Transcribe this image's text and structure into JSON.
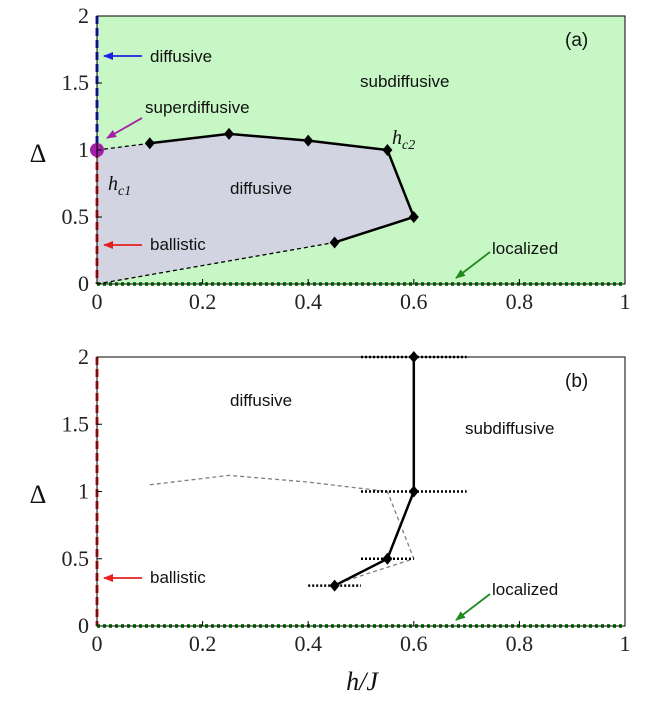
{
  "colors": {
    "green_region": "#c6f7c4",
    "gray_region": "#d2d5e1",
    "blue": "#1f22e6",
    "red": "#e61f1f",
    "magenta": "#a31fa8",
    "green_line": "#1f8a1f",
    "black": "#000000",
    "gray_line": "#808080"
  },
  "chart_data": [
    {
      "type": "line",
      "panel_label": "(a)",
      "xlabel": "",
      "ylabel": "Δ",
      "xlim": [
        0,
        1
      ],
      "ylim": [
        0,
        2
      ],
      "xticks": [
        "0",
        "0.2",
        "0.4",
        "0.6",
        "0.8",
        "1"
      ],
      "yticks": [
        "0",
        "0.5",
        "1",
        "1.5",
        "2"
      ],
      "grid": false,
      "series": [
        {
          "style": "solid-diamond",
          "x": [
            0.1,
            0.25,
            0.4,
            0.55,
            0.6,
            0.45
          ],
          "y": [
            1.05,
            1.12,
            1.07,
            1.0,
            0.5,
            0.31
          ]
        },
        {
          "style": "dashed",
          "x": [
            0,
            0.1
          ],
          "y": [
            1.0,
            1.05
          ]
        },
        {
          "style": "dashed",
          "x": [
            0,
            0.45
          ],
          "y": [
            0.0,
            0.31
          ]
        }
      ],
      "labels": {
        "diffusive_top": "diffusive",
        "superdiffusive": "superdiffusive",
        "subdiffusive": "subdiffusive",
        "diffusive_mid": "diffusive",
        "ballistic": "ballistic",
        "localized": "localized",
        "hc1_main": "h",
        "hc1_sub": "c1",
        "hc2_main": "h",
        "hc2_sub": "c2"
      }
    },
    {
      "type": "line",
      "panel_label": "(b)",
      "xlabel": "h/J",
      "ylabel": "Δ",
      "xlim": [
        0,
        1
      ],
      "ylim": [
        0,
        2
      ],
      "xticks": [
        "0",
        "0.2",
        "0.4",
        "0.6",
        "0.8",
        "1"
      ],
      "yticks": [
        "0",
        "0.5",
        "1",
        "1.5",
        "2"
      ],
      "grid": false,
      "series": [
        {
          "style": "solid-diamond",
          "x": [
            0.45,
            0.55,
            0.6,
            0.6
          ],
          "y": [
            0.3,
            0.5,
            1.0,
            2.0
          ]
        },
        {
          "style": "gray-dashed",
          "x": [
            0.1,
            0.25,
            0.4,
            0.55,
            0.6,
            0.45
          ],
          "y": [
            1.05,
            1.12,
            1.07,
            1.0,
            0.5,
            0.31
          ]
        }
      ],
      "error_bars": [
        {
          "y": 2.0,
          "xmin": 0.5,
          "xmax": 0.7
        },
        {
          "y": 1.0,
          "xmin": 0.5,
          "xmax": 0.7
        },
        {
          "y": 0.5,
          "xmin": 0.5,
          "xmax": 0.6
        },
        {
          "y": 0.3,
          "xmin": 0.4,
          "xmax": 0.5
        }
      ],
      "labels": {
        "diffusive": "diffusive",
        "subdiffusive": "subdiffusive",
        "ballistic": "ballistic",
        "localized": "localized"
      }
    }
  ]
}
